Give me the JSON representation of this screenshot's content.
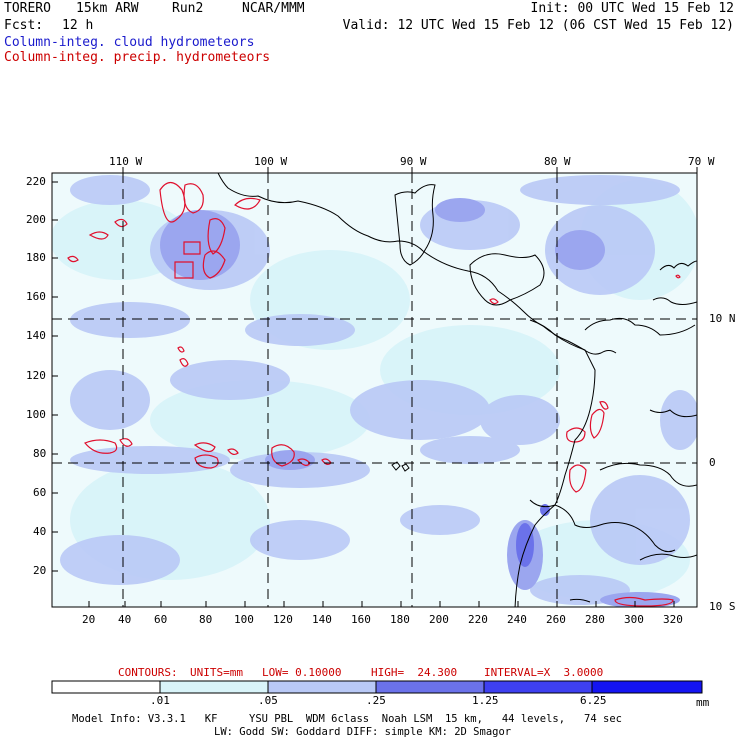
{
  "header": {
    "model": "TORERO",
    "resolution": "15km ARW",
    "run": "Run2",
    "org": "NCAR/MMM",
    "init": "Init: 00 UTC Wed 15 Feb 12",
    "fcst_label": "Fcst:",
    "fcst_value": "12 h",
    "valid": "Valid: 12 UTC Wed 15 Feb 12 (06 CST Wed 15 Feb 12)",
    "field1": "Column-integ. cloud hydrometeors",
    "field2": "Column-integ. precip. hydrometeors"
  },
  "map": {
    "lon_labels": [
      "110 W",
      "100 W",
      "90 W",
      "80 W",
      "70 W"
    ],
    "lat_labels": [
      "10 N",
      "0",
      "10 S"
    ],
    "y_ticks": [
      "220",
      "200",
      "180",
      "160",
      "140",
      "120",
      "100",
      "80",
      "60",
      "40",
      "20"
    ],
    "x_ticks": [
      "20",
      "40",
      "60",
      "80",
      "100",
      "120",
      "140",
      "160",
      "180",
      "200",
      "220",
      "240",
      "260",
      "280",
      "300",
      "320"
    ]
  },
  "contour_info": {
    "label": "CONTOURS:",
    "units": "UNITS=mm",
    "low": "LOW= 0.10000",
    "high": "HIGH=  24.300",
    "interval": "INTERVAL=X  3.0000"
  },
  "colorbar": {
    "labels": [
      ".01",
      ".05",
      ".25",
      "1.25",
      "6.25"
    ],
    "unit": "mm",
    "colors": [
      "#ffffff",
      "#d9f4f9",
      "#b9c9f6",
      "#9ba6ef",
      "#6b72ea",
      "#3e40f0",
      "#1414f2"
    ]
  },
  "footer": {
    "line1": "Model Info: V3.3.1   KF     YSU PBL  WDM 6class  Noah LSM  15 km,   44 levels,   74 sec",
    "line2": "LW: Godd SW: Goddard DIFF: simple KM: 2D Smagor"
  }
}
